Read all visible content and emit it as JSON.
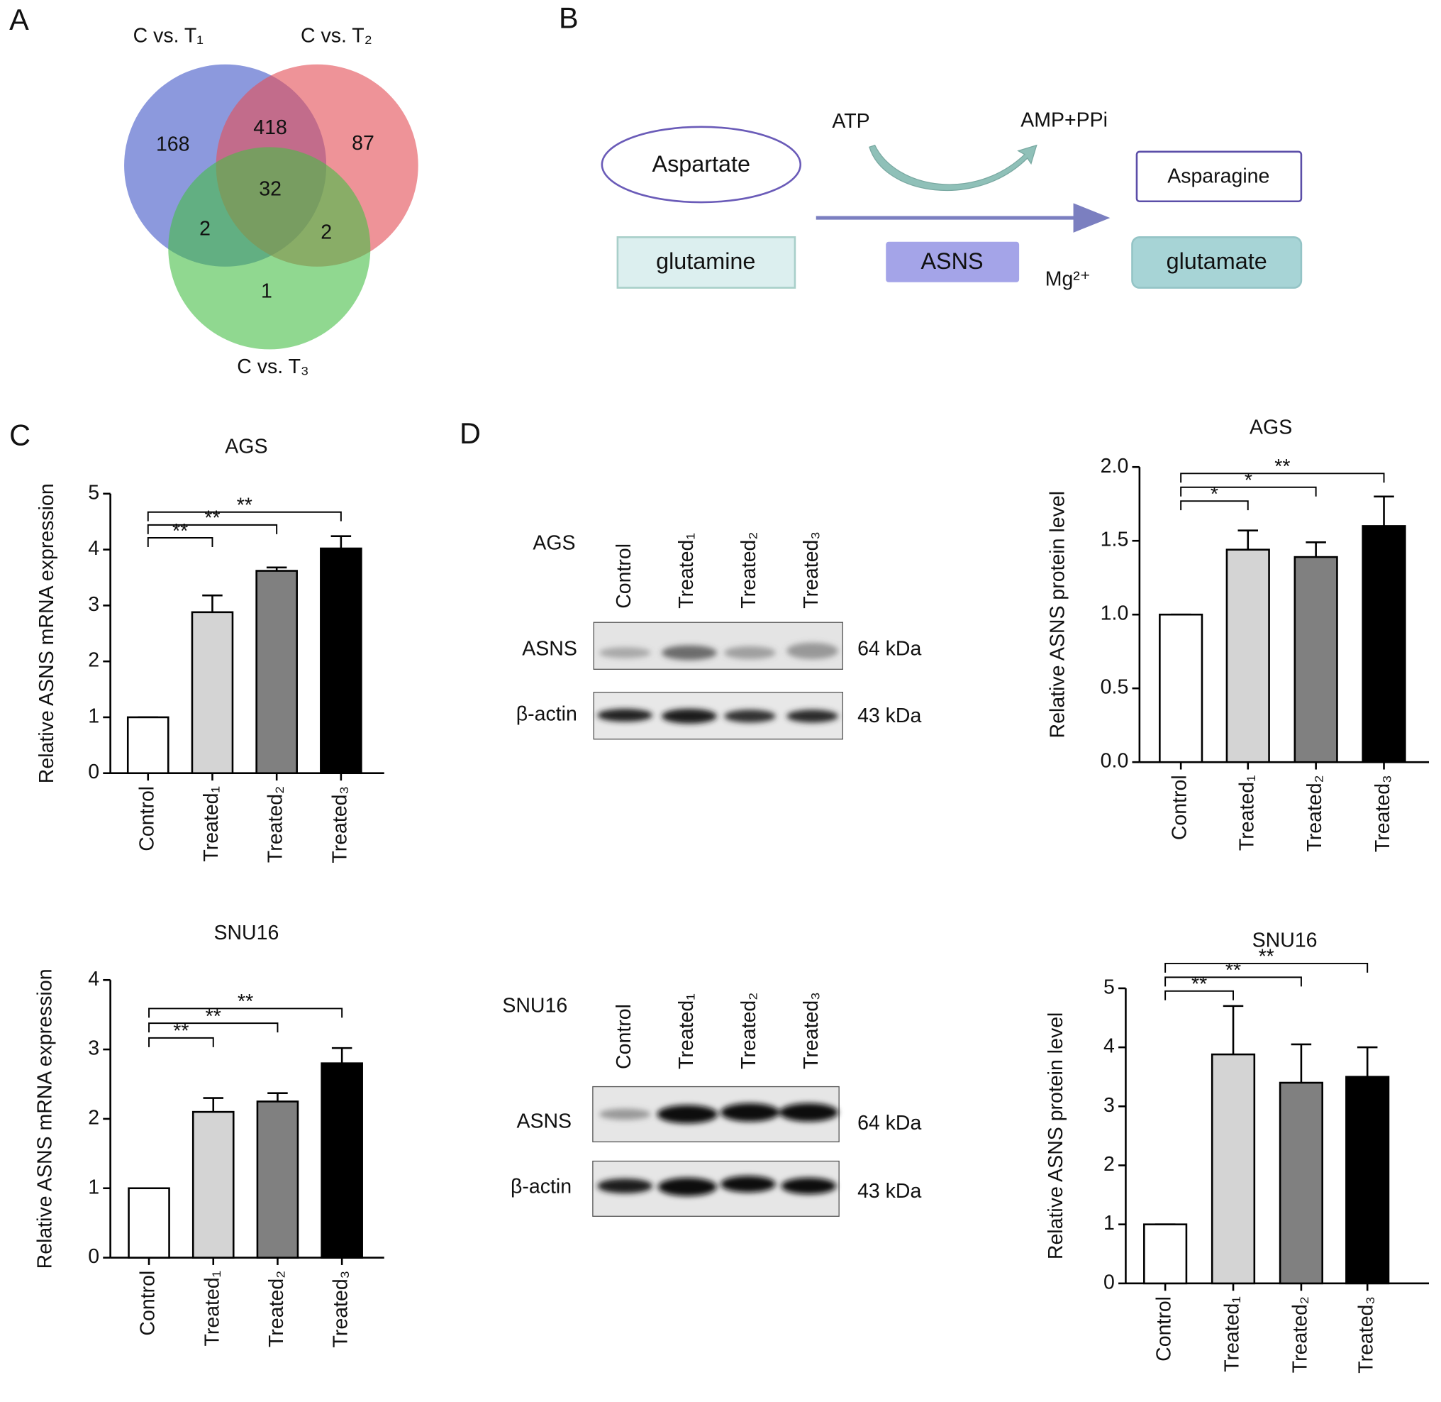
{
  "panel_labels": [
    "A",
    "B",
    "C",
    "D"
  ],
  "venn": {
    "sets": [
      "C vs. T₁",
      "C vs. T₂",
      "C vs. T₃"
    ],
    "counts": [
      168,
      87,
      1,
      418,
      2,
      2,
      32
    ]
  },
  "pathway": {
    "substrates": [
      "Aspartate",
      "glutamine"
    ],
    "cofactors": [
      "ATP",
      "AMP+PPi"
    ],
    "enzyme": "ASNS",
    "ion": "Mg²⁺",
    "products": [
      "Asparagine",
      "glutamate"
    ]
  },
  "blots": [
    {
      "cell_line": "AGS",
      "lanes": [
        "Control",
        "Treated₁",
        "Treated₂",
        "Treated₃"
      ],
      "proteins": [
        "ASNS",
        "β-actin"
      ],
      "sizes": [
        "64 kDa",
        "43 kDa"
      ]
    },
    {
      "cell_line": "SNU16",
      "lanes": [
        "Control",
        "Treated₁",
        "Treated₂",
        "Treated₃"
      ],
      "proteins": [
        "ASNS",
        "β-actin"
      ],
      "sizes": [
        "64 kDa",
        "43 kDa"
      ]
    }
  ],
  "chart_data": [
    {
      "type": "bar",
      "title": "AGS",
      "y_label": "Relative ASNS mRNA expression",
      "categories": [
        "Control",
        "Treated₁",
        "Treated₂",
        "Treated₃"
      ],
      "values": [
        1,
        2.88,
        3.62,
        4.02
      ],
      "errors": [
        0,
        0.3,
        0.06,
        0.22
      ],
      "colors": [
        "#ffffff",
        "#d4d4d4",
        "#808080",
        "#000000"
      ],
      "significance": [
        null,
        "**",
        "**",
        "**"
      ],
      "ylim": [
        0,
        5
      ],
      "yticks": [
        0,
        1,
        2,
        3,
        4,
        5
      ]
    },
    {
      "type": "bar",
      "title": "SNU16",
      "y_label": "Relative ASNS mRNA expression",
      "categories": [
        "Control",
        "Treated₁",
        "Treated₂",
        "Treated₃"
      ],
      "values": [
        1,
        2.1,
        2.25,
        2.8
      ],
      "errors": [
        0,
        0.2,
        0.12,
        0.22
      ],
      "colors": [
        "#ffffff",
        "#d4d4d4",
        "#808080",
        "#000000"
      ],
      "significance": [
        null,
        "**",
        "**",
        "**"
      ],
      "ylim": [
        0,
        4
      ],
      "yticks": [
        0,
        1,
        2,
        3,
        4
      ]
    },
    {
      "type": "bar",
      "title": "AGS",
      "y_label": "Relative ASNS protein level",
      "categories": [
        "Control",
        "Treated₁",
        "Treated₂",
        "Treated₃"
      ],
      "values": [
        1,
        1.44,
        1.39,
        1.6
      ],
      "errors": [
        0,
        0.13,
        0.1,
        0.2
      ],
      "colors": [
        "#ffffff",
        "#d4d4d4",
        "#808080",
        "#000000"
      ],
      "significance": [
        null,
        "*",
        "*",
        "**"
      ],
      "ylim": [
        0,
        2
      ],
      "yticks": [
        {
          "value": 0,
          "label": "0.0"
        },
        {
          "value": 0.5,
          "label": "0.5"
        },
        {
          "value": 1,
          "label": "1.0"
        },
        {
          "value": 1.5,
          "label": "1.5"
        },
        {
          "value": 2,
          "label": "2.0"
        }
      ]
    },
    {
      "type": "bar",
      "title": "SNU16",
      "y_label": "Relative ASNS protein level",
      "categories": [
        "Control",
        "Treated₁",
        "Treated₂",
        "Treated₃"
      ],
      "values": [
        1,
        3.88,
        3.4,
        3.5
      ],
      "errors": [
        0,
        0.82,
        0.65,
        0.5
      ],
      "colors": [
        "#ffffff",
        "#d4d4d4",
        "#808080",
        "#000000"
      ],
      "significance": [
        null,
        "**",
        "**",
        "**"
      ],
      "ylim": [
        0,
        5
      ],
      "yticks": [
        0,
        1,
        2,
        3,
        4,
        5
      ]
    }
  ]
}
